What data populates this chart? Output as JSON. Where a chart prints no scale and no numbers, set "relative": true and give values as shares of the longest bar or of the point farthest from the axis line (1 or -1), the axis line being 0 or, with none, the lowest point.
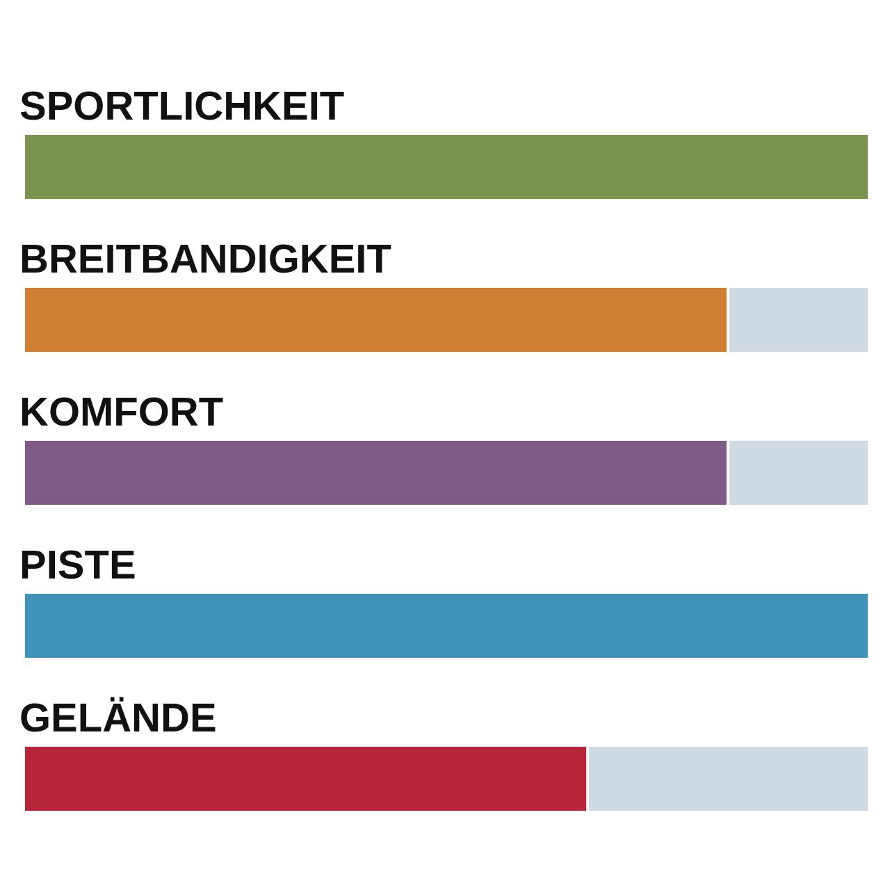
{
  "chart_data": {
    "type": "bar",
    "orientation": "horizontal",
    "stacked": true,
    "relative": true,
    "categories": [
      "SPORTLICHKEIT",
      "BREITBANDIGKEIT",
      "KOMFORT",
      "PISTE",
      "GELÄNDE"
    ],
    "series": [
      {
        "colors": [
          "#7a9450",
          "#cf7f33",
          "#7e5a87",
          "#3f92b8",
          "#b8263c"
        ],
        "values": [
          1,
          0.833,
          0.833,
          1,
          0.667
        ]
      },
      {
        "color": "#cfdae2",
        "values": [
          0,
          0.167,
          0.167,
          0,
          0.333
        ]
      }
    ],
    "legend": false
  }
}
